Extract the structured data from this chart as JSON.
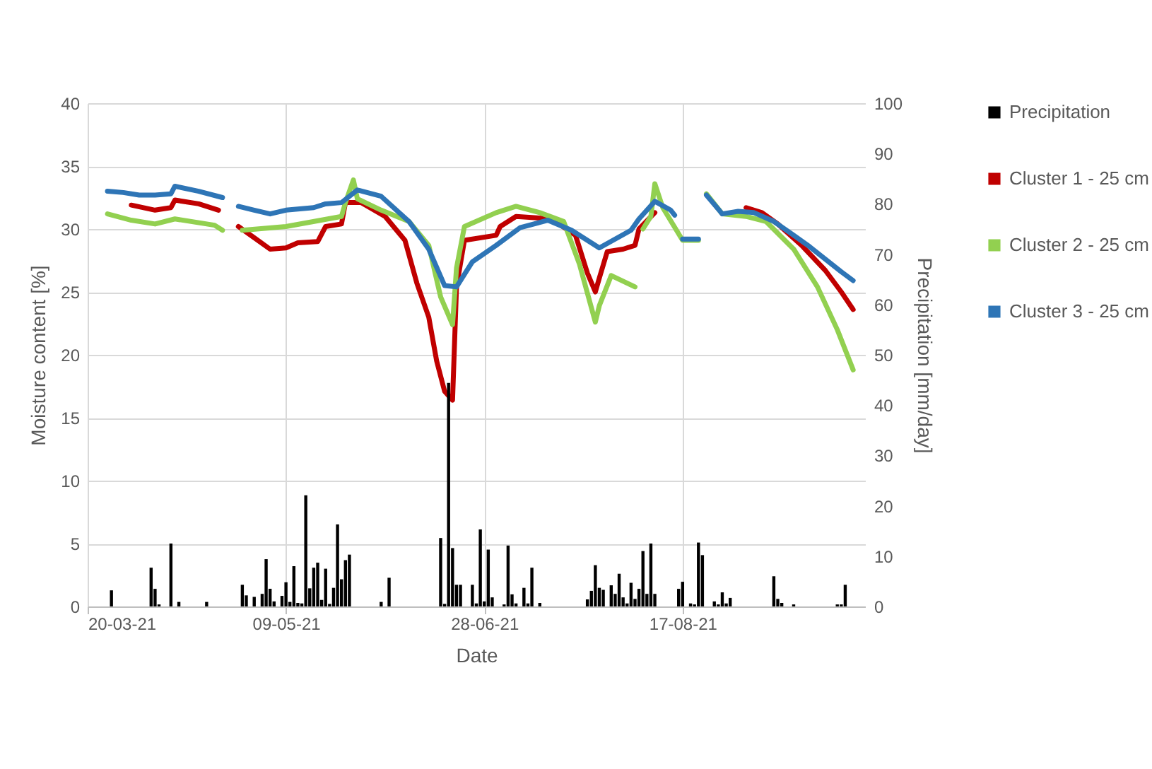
{
  "chart_data": {
    "type": "line",
    "xlabel": "Date",
    "ylabel": "Moisture content [%]",
    "y2label": "Precipitation [mm/day]",
    "xlim": [
      "2021-03-20",
      "2021-10-02"
    ],
    "xticks": [
      {
        "value": "2021-03-20",
        "label": "20-03-21"
      },
      {
        "value": "2021-05-09",
        "label": "09-05-21"
      },
      {
        "value": "2021-06-28",
        "label": "28-06-21"
      },
      {
        "value": "2021-08-17",
        "label": "17-08-21"
      }
    ],
    "ylim": [
      0,
      40
    ],
    "yticks": [
      0,
      5,
      10,
      15,
      20,
      25,
      30,
      35,
      40
    ],
    "y2lim": [
      0,
      100
    ],
    "y2ticks": [
      0,
      10,
      20,
      30,
      40,
      50,
      60,
      70,
      80,
      90,
      100
    ],
    "grid": true,
    "legend": "right",
    "line_style": "solid",
    "series": [
      {
        "name": "Precipitation",
        "type": "bar",
        "axis": "y2",
        "color": "#000000",
        "x": [
          "2021-03-26",
          "2021-04-05",
          "2021-04-06",
          "2021-04-07",
          "2021-04-10",
          "2021-04-12",
          "2021-04-19",
          "2021-04-28",
          "2021-04-29",
          "2021-05-01",
          "2021-05-03",
          "2021-05-04",
          "2021-05-05",
          "2021-05-06",
          "2021-05-08",
          "2021-05-09",
          "2021-05-10",
          "2021-05-11",
          "2021-05-12",
          "2021-05-13",
          "2021-05-14",
          "2021-05-15",
          "2021-05-16",
          "2021-05-17",
          "2021-05-18",
          "2021-05-19",
          "2021-05-20",
          "2021-05-21",
          "2021-05-22",
          "2021-05-23",
          "2021-05-24",
          "2021-05-25",
          "2021-06-02",
          "2021-06-04",
          "2021-06-17",
          "2021-06-18",
          "2021-06-19",
          "2021-06-20",
          "2021-06-21",
          "2021-06-22",
          "2021-06-25",
          "2021-06-26",
          "2021-06-27",
          "2021-06-28",
          "2021-06-29",
          "2021-06-30",
          "2021-07-03",
          "2021-07-04",
          "2021-07-05",
          "2021-07-06",
          "2021-07-08",
          "2021-07-09",
          "2021-07-10",
          "2021-07-12",
          "2021-07-24",
          "2021-07-25",
          "2021-07-26",
          "2021-07-27",
          "2021-07-28",
          "2021-07-30",
          "2021-07-31",
          "2021-08-01",
          "2021-08-02",
          "2021-08-03",
          "2021-08-04",
          "2021-08-05",
          "2021-08-06",
          "2021-08-07",
          "2021-08-08",
          "2021-08-09",
          "2021-08-10",
          "2021-08-16",
          "2021-08-17",
          "2021-08-19",
          "2021-08-20",
          "2021-08-21",
          "2021-08-22",
          "2021-08-25",
          "2021-08-26",
          "2021-08-27",
          "2021-08-28",
          "2021-08-29",
          "2021-09-09",
          "2021-09-10",
          "2021-09-11",
          "2021-09-14",
          "2021-09-25",
          "2021-09-26",
          "2021-09-27"
        ],
        "values": [
          3.2,
          7.7,
          3.5,
          0.4,
          12.5,
          0.9,
          0.9,
          4.3,
          2.2,
          1.9,
          2.5,
          9.4,
          3.5,
          1.0,
          2.1,
          4.8,
          0.9,
          8.0,
          0.7,
          0.6,
          22.1,
          3.6,
          7.7,
          8.7,
          1.3,
          7.5,
          0.5,
          3.7,
          16.3,
          5.4,
          9.2,
          10.3,
          0.9,
          5.7,
          13.6,
          0.5,
          44.4,
          11.6,
          4.3,
          4.3,
          4.3,
          0.6,
          15.3,
          1.0,
          11.3,
          1.8,
          0.4,
          12.1,
          2.4,
          0.6,
          3.7,
          0.6,
          7.7,
          0.7,
          1.4,
          3.1,
          8.2,
          3.7,
          3.3,
          4.2,
          2.5,
          6.5,
          1.8,
          0.6,
          4.7,
          1.5,
          3.5,
          11.0,
          2.5,
          12.5,
          2.5,
          3.5,
          4.9,
          0.6,
          0.4,
          12.7,
          10.2,
          1.0,
          0.4,
          2.8,
          0.6,
          1.7,
          6.0,
          1.5,
          0.7,
          0.4,
          0.4,
          0.4,
          4.3
        ]
      },
      {
        "name": "Cluster 1 - 25 cm",
        "type": "line",
        "color": "#c00000",
        "x": [
          "2021-03-31",
          "2021-04-06",
          "2021-04-10",
          "2021-04-11",
          "2021-04-17",
          "2021-04-22",
          "2021-04-25",
          "2021-04-27",
          "2021-05-01",
          "2021-05-05",
          "2021-05-09",
          "2021-05-12",
          "2021-05-17",
          "2021-05-19",
          "2021-05-23",
          "2021-05-24",
          "2021-05-28",
          "2021-06-03",
          "2021-06-08",
          "2021-06-11",
          "2021-06-14",
          "2021-06-16",
          "2021-06-18",
          "2021-06-20",
          "2021-06-21",
          "2021-06-23",
          "2021-07-01",
          "2021-07-02",
          "2021-07-06",
          "2021-07-15",
          "2021-07-21",
          "2021-07-24",
          "2021-07-26",
          "2021-07-27",
          "2021-07-29",
          "2021-08-02",
          "2021-08-05",
          "2021-08-06",
          "2021-08-10",
          "2021-08-12",
          "2021-09-02",
          "2021-09-06",
          "2021-09-10",
          "2021-09-16",
          "2021-09-22",
          "2021-09-26",
          "2021-09-29"
        ],
        "values": [
          31.9,
          31.5,
          31.7,
          32.3,
          32.0,
          31.5,
          null,
          30.2,
          29.3,
          28.4,
          28.5,
          28.9,
          29.0,
          30.2,
          30.4,
          32.1,
          32.1,
          31.0,
          29.1,
          25.7,
          23.0,
          19.5,
          17.1,
          16.4,
          25.4,
          29.1,
          29.5,
          30.2,
          31.0,
          30.8,
          29.5,
          26.5,
          25.0,
          26.1,
          28.2,
          28.4,
          28.7,
          30.0,
          31.3,
          null,
          31.7,
          31.3,
          30.4,
          28.7,
          26.7,
          25.0,
          23.6
        ]
      },
      {
        "name": "Cluster 2 - 25 cm",
        "type": "line",
        "color": "#92d050",
        "x": [
          "2021-03-25",
          "2021-03-31",
          "2021-04-06",
          "2021-04-11",
          "2021-04-21",
          "2021-04-23",
          "2021-04-25",
          "2021-04-28",
          "2021-05-09",
          "2021-05-23",
          "2021-05-24",
          "2021-05-26",
          "2021-05-27",
          "2021-06-02",
          "2021-06-09",
          "2021-06-14",
          "2021-06-17",
          "2021-06-20",
          "2021-06-21",
          "2021-06-23",
          "2021-07-01",
          "2021-07-06",
          "2021-07-12",
          "2021-07-18",
          "2021-07-22",
          "2021-07-26",
          "2021-07-27",
          "2021-07-30",
          "2021-08-05",
          "2021-08-06",
          "2021-08-07",
          "2021-08-09",
          "2021-08-10",
          "2021-08-12",
          "2021-08-17",
          "2021-08-21",
          "2021-08-22",
          "2021-08-23",
          "2021-08-27",
          "2021-09-02",
          "2021-09-07",
          "2021-09-14",
          "2021-09-20",
          "2021-09-25",
          "2021-09-29"
        ],
        "values": [
          31.2,
          30.7,
          30.4,
          30.8,
          30.3,
          29.9,
          null,
          29.9,
          30.2,
          31.0,
          32.1,
          33.9,
          32.4,
          31.5,
          30.6,
          28.7,
          24.6,
          22.4,
          26.9,
          30.2,
          31.3,
          31.8,
          31.3,
          30.6,
          27.2,
          22.6,
          23.9,
          26.3,
          25.4,
          null,
          30.0,
          31.0,
          33.6,
          31.7,
          29.1,
          29.1,
          null,
          32.8,
          31.2,
          31.0,
          30.6,
          28.4,
          25.4,
          22.0,
          18.8
        ]
      },
      {
        "name": "Cluster 3 - 25 cm",
        "type": "line",
        "color": "#2e75b6",
        "x": [
          "2021-03-25",
          "2021-03-29",
          "2021-04-02",
          "2021-04-06",
          "2021-04-10",
          "2021-04-11",
          "2021-04-17",
          "2021-04-23",
          "2021-04-25",
          "2021-04-27",
          "2021-05-01",
          "2021-05-05",
          "2021-05-09",
          "2021-05-16",
          "2021-05-19",
          "2021-05-23",
          "2021-05-27",
          "2021-06-02",
          "2021-06-09",
          "2021-06-14",
          "2021-06-18",
          "2021-06-21",
          "2021-06-25",
          "2021-07-01",
          "2021-07-07",
          "2021-07-14",
          "2021-07-20",
          "2021-07-27",
          "2021-07-31",
          "2021-08-04",
          "2021-08-06",
          "2021-08-10",
          "2021-08-14",
          "2021-08-15",
          "2021-08-16",
          "2021-08-17",
          "2021-08-21",
          "2021-08-22",
          "2021-08-23",
          "2021-08-27",
          "2021-08-31",
          "2021-09-04",
          "2021-09-09",
          "2021-09-14",
          "2021-09-18",
          "2021-09-22",
          "2021-09-26",
          "2021-09-29"
        ],
        "values": [
          33.0,
          32.9,
          32.7,
          32.7,
          32.8,
          33.4,
          33.0,
          32.5,
          null,
          31.8,
          31.5,
          31.2,
          31.5,
          31.7,
          32.0,
          32.1,
          33.1,
          32.6,
          30.6,
          28.4,
          25.5,
          25.4,
          27.4,
          28.7,
          30.1,
          30.7,
          29.9,
          28.5,
          29.2,
          29.9,
          30.8,
          32.2,
          31.5,
          31.1,
          null,
          29.2,
          29.2,
          null,
          32.7,
          31.2,
          31.4,
          31.3,
          30.6,
          29.5,
          28.6,
          27.6,
          26.6,
          25.9
        ]
      }
    ]
  }
}
